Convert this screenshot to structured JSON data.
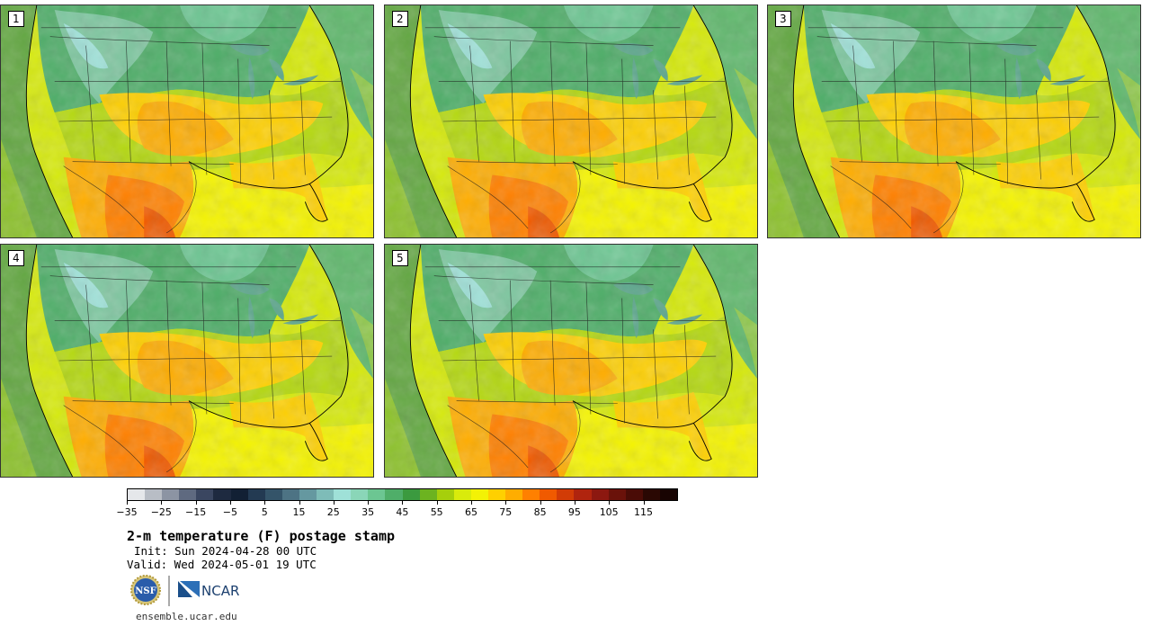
{
  "panels": [
    {
      "label": "1"
    },
    {
      "label": "2"
    },
    {
      "label": "3"
    },
    {
      "label": "4"
    },
    {
      "label": "5"
    }
  ],
  "colorbar": {
    "ticks": [
      "−35",
      "−25",
      "−15",
      "−5",
      "5",
      "15",
      "25",
      "35",
      "45",
      "55",
      "65",
      "75",
      "85",
      "95",
      "105",
      "115"
    ],
    "colors": [
      "#e5e7ea",
      "#b8bdc5",
      "#8c94a3",
      "#5f6a80",
      "#3a4660",
      "#1e2a40",
      "#122034",
      "#233a52",
      "#345469",
      "#4d7384",
      "#6598a0",
      "#7ebcb8",
      "#9fe1d8",
      "#8ad6b8",
      "#6cc692",
      "#4fae69",
      "#3b9a3f",
      "#6cb320",
      "#a6cf0c",
      "#d9eb0c",
      "#f3f205",
      "#ffd000",
      "#ffad00",
      "#ff8000",
      "#f05a00",
      "#d23c06",
      "#b0240e",
      "#8c1810",
      "#6a120a",
      "#4a0c06",
      "#2a0803",
      "#180402"
    ],
    "unit": "F"
  },
  "title": "2-m temperature (F) postage stamp",
  "init": "Init: Sun 2024-04-28 00 UTC",
  "valid": "Valid: Wed 2024-05-01 19 UTC",
  "logos": {
    "nsf": "NSF",
    "ncar": "NCAR"
  },
  "footer_url": "ensemble.ucar.edu"
}
